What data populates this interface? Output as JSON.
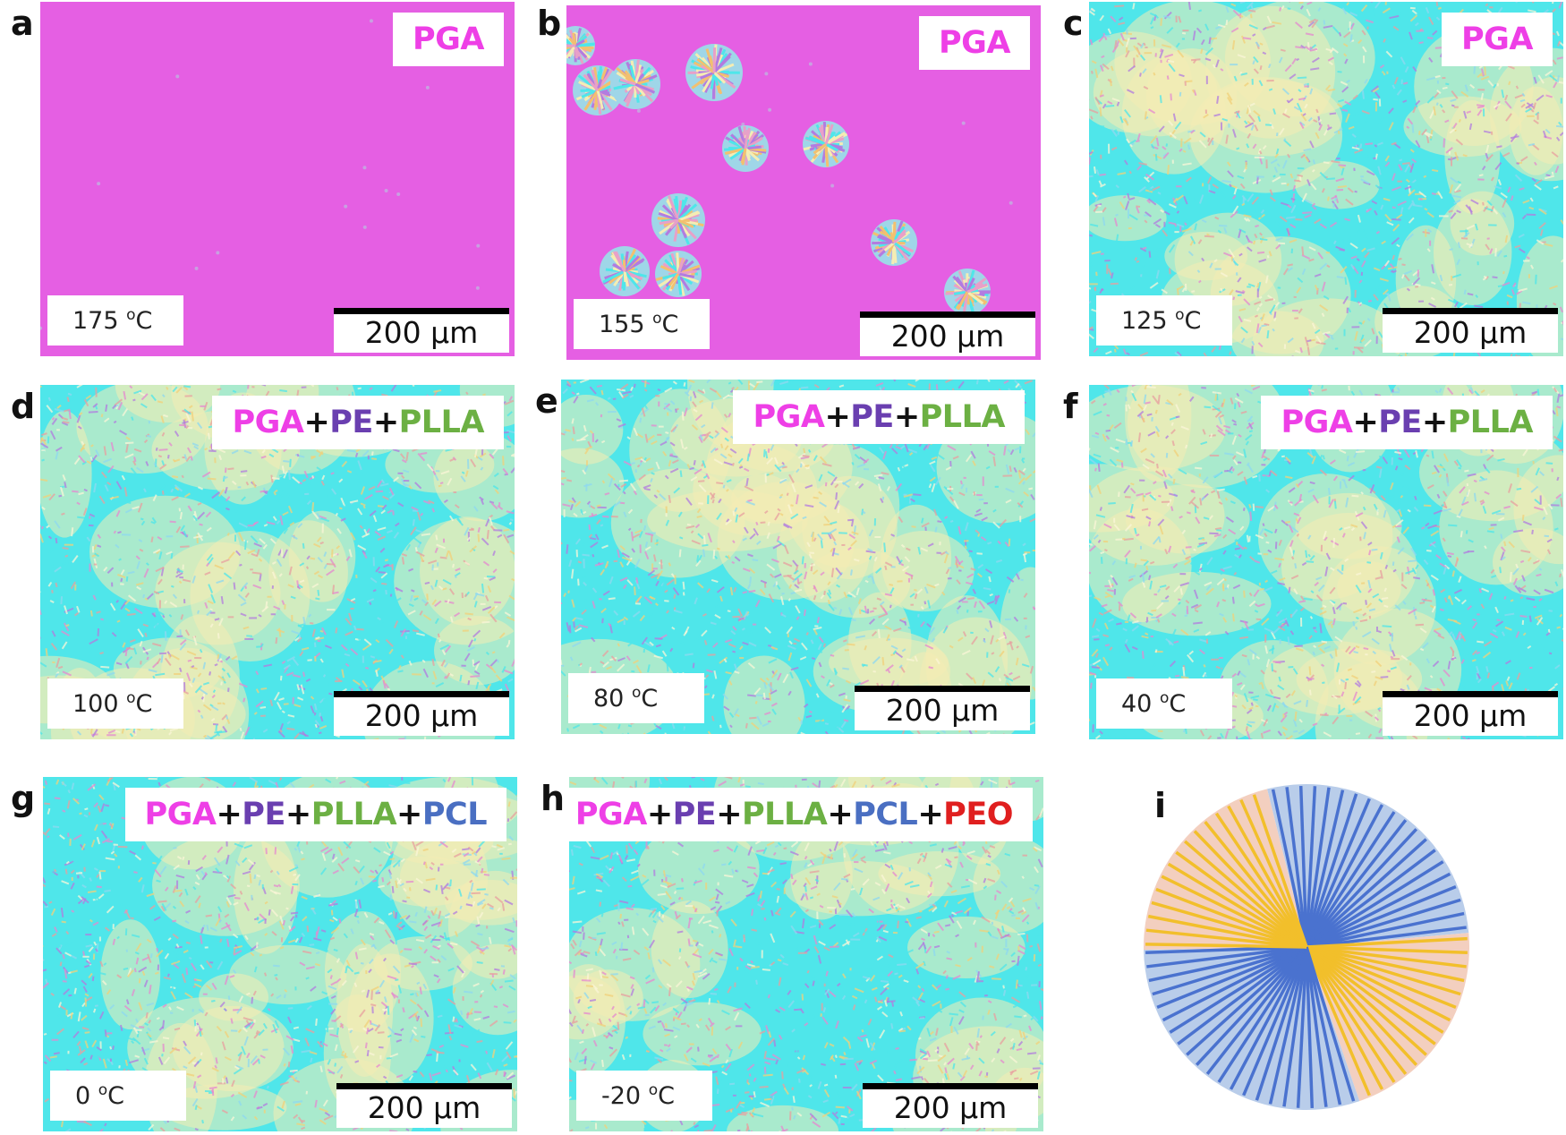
{
  "colors": {
    "PGA": "#ee3fe6",
    "PE": "#6a3fb0",
    "PLLA": "#6cb043",
    "PCL": "#4a6fc2",
    "PEO": "#e01f1f",
    "plus": "#111111",
    "melt_background": "#e55fe3",
    "cyan": "#4fe6ea",
    "cream": "#f4edb4",
    "blue_sector": "#b9cdea",
    "peach_sector": "#f3cfbf",
    "blue_line": "#4a72cf",
    "yellow_line": "#f2bf2b"
  },
  "scale_bar": "200 µm",
  "temp_unit": "C",
  "temp_degree": "o",
  "panels": [
    {
      "letter": "a",
      "temp": "175 ",
      "sample": [
        {
          "t": "PGA",
          "c": "PGA"
        }
      ],
      "state": "melt"
    },
    {
      "letter": "b",
      "temp": "155 ",
      "sample": [
        {
          "t": "PGA",
          "c": "PGA"
        }
      ],
      "state": "spherulites"
    },
    {
      "letter": "c",
      "temp": "125 ",
      "sample": [
        {
          "t": "PGA",
          "c": "PGA"
        }
      ],
      "state": "crystallized"
    },
    {
      "letter": "d",
      "temp": "100 ",
      "sample": [
        {
          "t": "PGA",
          "c": "PGA"
        },
        {
          "t": "+",
          "c": "plus"
        },
        {
          "t": "PE",
          "c": "PE"
        },
        {
          "t": "+",
          "c": "plus"
        },
        {
          "t": "PLLA",
          "c": "PLLA"
        }
      ],
      "state": "crystallized"
    },
    {
      "letter": "e",
      "temp": "80 ",
      "sample": [
        {
          "t": "PGA",
          "c": "PGA"
        },
        {
          "t": "+",
          "c": "plus"
        },
        {
          "t": "PE",
          "c": "PE"
        },
        {
          "t": "+",
          "c": "plus"
        },
        {
          "t": "PLLA",
          "c": "PLLA"
        }
      ],
      "state": "crystallized"
    },
    {
      "letter": "f",
      "temp": "40 ",
      "sample": [
        {
          "t": "PGA",
          "c": "PGA"
        },
        {
          "t": "+",
          "c": "plus"
        },
        {
          "t": "PE",
          "c": "PE"
        },
        {
          "t": "+",
          "c": "plus"
        },
        {
          "t": "PLLA",
          "c": "PLLA"
        }
      ],
      "state": "crystallized"
    },
    {
      "letter": "g",
      "temp": "0 ",
      "sample": [
        {
          "t": "PGA",
          "c": "PGA"
        },
        {
          "t": "+",
          "c": "plus"
        },
        {
          "t": "PE",
          "c": "PE"
        },
        {
          "t": "+",
          "c": "plus"
        },
        {
          "t": "PLLA",
          "c": "PLLA"
        },
        {
          "t": "+",
          "c": "plus"
        },
        {
          "t": "PCL",
          "c": "PCL"
        }
      ],
      "state": "crystallized"
    },
    {
      "letter": "h",
      "temp": "-20 ",
      "sample": [
        {
          "t": "PGA",
          "c": "PGA"
        },
        {
          "t": "+",
          "c": "plus"
        },
        {
          "t": "PE",
          "c": "PE"
        },
        {
          "t": "+",
          "c": "plus"
        },
        {
          "t": "PLLA",
          "c": "PLLA"
        },
        {
          "t": "+",
          "c": "plus"
        },
        {
          "t": "PCL",
          "c": "PCL"
        },
        {
          "t": "+",
          "c": "plus"
        },
        {
          "t": "PEO",
          "c": "PEO"
        }
      ],
      "state": "crystallized"
    }
  ],
  "schematic": {
    "letter": "i",
    "icon": "maltese-cross-spherulite-schematic"
  }
}
